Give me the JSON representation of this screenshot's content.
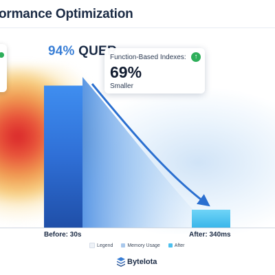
{
  "header": {
    "title": "ormance Optimization"
  },
  "headline": {
    "percent": "94%",
    "text": " QUER"
  },
  "stat_card": {
    "label": "Function-Based Indexes:",
    "value": "69%",
    "sub": "Smaller",
    "icon": "arrow-up-icon",
    "icon_color": "#2eae5a"
  },
  "brand": {
    "name": "Bytelota",
    "icon": "stacked-layers-icon"
  },
  "colors": {
    "before_bar": "#2f6fd6",
    "after_bar": "#4cc0ef",
    "heat_hot": "#d9252a",
    "accent": "#3a7fd6"
  },
  "chart_data": {
    "type": "bar",
    "categories": [
      "Before: 30s",
      "After: 340ms"
    ],
    "values": [
      30,
      0.34
    ],
    "unit": "s",
    "ylim": [
      0,
      34
    ],
    "grid": false,
    "legend_placement": "bottom",
    "legend": [
      {
        "name": "Legend",
        "color": "#eef2f7"
      },
      {
        "name": "Memory Usage",
        "color": "#a9c8ec"
      },
      {
        "name": "After",
        "color": "#4cc0ef"
      }
    ],
    "annotation": "94%"
  }
}
